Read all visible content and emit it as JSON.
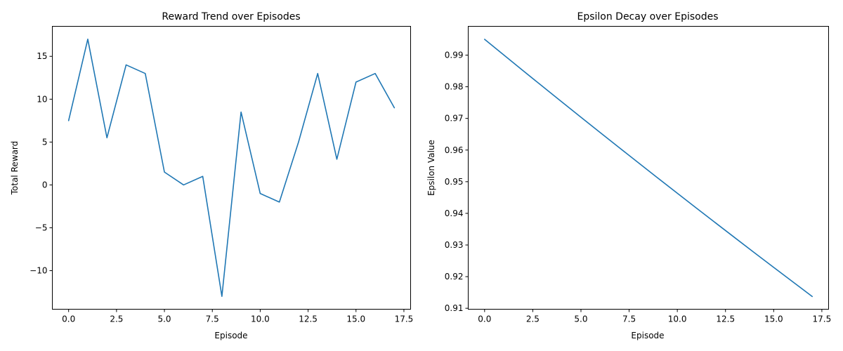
{
  "chart_data": [
    {
      "type": "line",
      "title": "Reward Trend over Episodes",
      "xlabel": "Episode",
      "ylabel": "Total Reward",
      "xlim": [
        -0.85,
        17.85
      ],
      "ylim": [
        -14.5,
        18.5
      ],
      "xticks": [
        0.0,
        2.5,
        5.0,
        7.5,
        10.0,
        12.5,
        15.0,
        17.5
      ],
      "xtick_labels": [
        "0.0",
        "2.5",
        "5.0",
        "7.5",
        "10.0",
        "12.5",
        "15.0",
        "17.5"
      ],
      "yticks": [
        -10,
        -5,
        0,
        5,
        10,
        15
      ],
      "ytick_labels": [
        "−10",
        "−5",
        "0",
        "5",
        "10",
        "15"
      ],
      "grid": false,
      "color": "#1f77b4",
      "series": [
        {
          "x": [
            0,
            1,
            2,
            3,
            4,
            5,
            6,
            7,
            8,
            9,
            10,
            11,
            12,
            13,
            14,
            15,
            16,
            17
          ],
          "values": [
            7.5,
            17,
            5.5,
            14,
            13,
            1.5,
            0,
            1,
            -13,
            8.5,
            -1,
            -2,
            5,
            13,
            3,
            12,
            13,
            9
          ]
        }
      ]
    },
    {
      "type": "line",
      "title": "Epsilon Decay over Episodes",
      "xlabel": "Episode",
      "ylabel": "Epsilon Value",
      "xlim": [
        -0.85,
        17.85
      ],
      "ylim": [
        0.9097,
        0.9991
      ],
      "xticks": [
        0.0,
        2.5,
        5.0,
        7.5,
        10.0,
        12.5,
        15.0,
        17.5
      ],
      "xtick_labels": [
        "0.0",
        "2.5",
        "5.0",
        "7.5",
        "10.0",
        "12.5",
        "15.0",
        "17.5"
      ],
      "yticks": [
        0.91,
        0.92,
        0.93,
        0.94,
        0.95,
        0.96,
        0.97,
        0.98,
        0.99
      ],
      "ytick_labels": [
        "0.91",
        "0.92",
        "0.93",
        "0.94",
        "0.95",
        "0.96",
        "0.97",
        "0.98",
        "0.99"
      ],
      "grid": false,
      "color": "#1f77b4",
      "series": [
        {
          "x": [
            0,
            1,
            2,
            3,
            4,
            5,
            6,
            7,
            8,
            9,
            10,
            11,
            12,
            13,
            14,
            15,
            16,
            17
          ],
          "values": [
            0.995,
            0.990025,
            0.985075,
            0.98015,
            0.975249,
            0.970373,
            0.965521,
            0.960693,
            0.95589,
            0.95111,
            0.946355,
            0.941623,
            0.936915,
            0.93223,
            0.927569,
            0.922931,
            0.918317,
            0.913725
          ]
        }
      ]
    }
  ]
}
